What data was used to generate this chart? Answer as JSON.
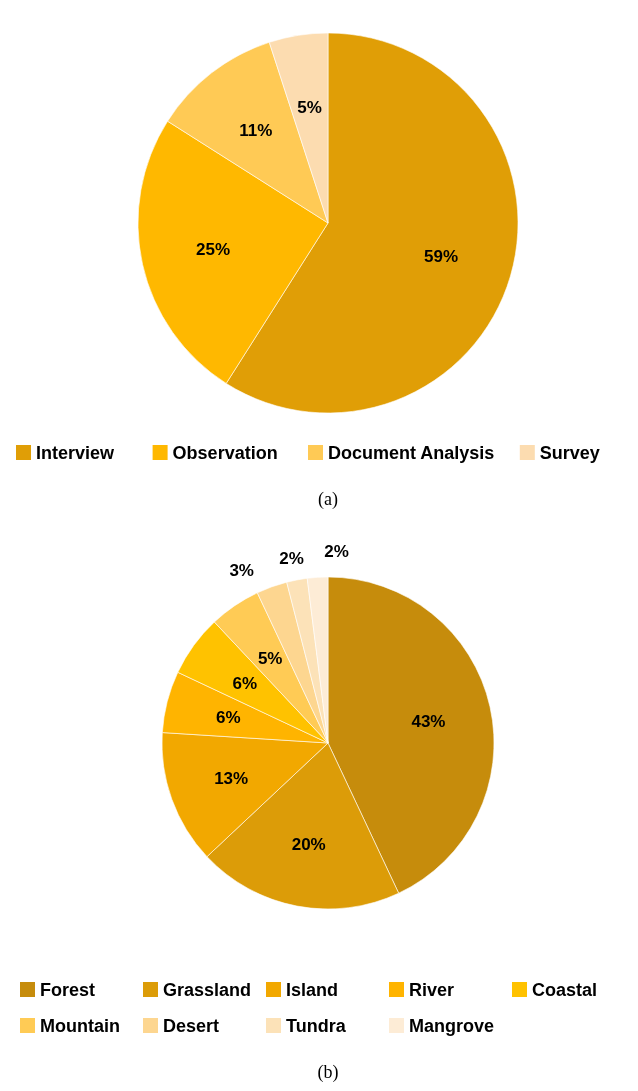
{
  "chart_data": [
    {
      "type": "pie",
      "categories": [
        "Interview",
        "Observation",
        "Document Analysis",
        "Survey"
      ],
      "values": [
        59,
        25,
        11,
        5
      ],
      "value_labels": [
        "59%",
        "25%",
        "11%",
        "5%"
      ],
      "colors": [
        "#e09e06",
        "#ffb800",
        "#ffca55",
        "#fcdcb0"
      ],
      "legend": "bottom",
      "annotations": [
        "(a)"
      ]
    },
    {
      "type": "pie",
      "categories": [
        "Forest",
        "Grassland",
        "Island",
        "River",
        "Coastal",
        "Mountain",
        "Desert",
        "Tundra",
        "Mangrove"
      ],
      "values": [
        43,
        20,
        13,
        6,
        6,
        5,
        3,
        2,
        2
      ],
      "value_labels": [
        "43%",
        "20%",
        "13%",
        "6%",
        "6%",
        "5%",
        "3%",
        "2%",
        "2%"
      ],
      "colors": [
        "#c68c0c",
        "#dc9c08",
        "#f2a800",
        "#ffb400",
        "#ffc200",
        "#ffcb55",
        "#fdd690",
        "#fce2b8",
        "#fdecd6"
      ],
      "legend": "bottom",
      "annotations": [
        "(b)"
      ]
    }
  ]
}
